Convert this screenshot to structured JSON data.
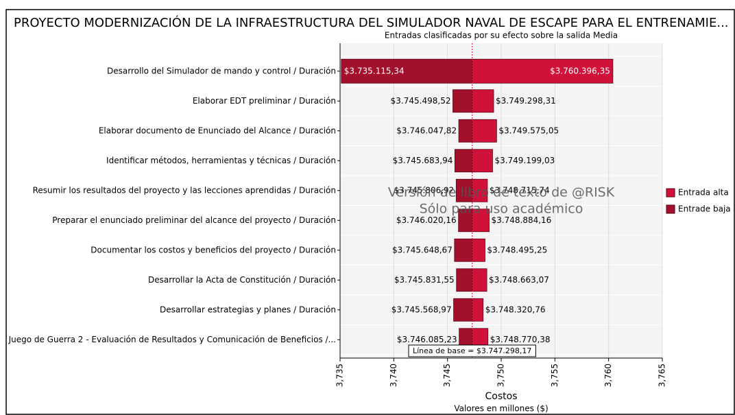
{
  "chart_data": {
    "type": "tornado",
    "title": "PROYECTO MODERNIZACIÓN DE LA INFRAESTRUCTURA DEL SIMULADOR NAVAL DE ESCAPE PARA EL ENTRENAMIE...",
    "subtitle": "Entradas clasificadas por su efecto sobre la salida Media",
    "x_label": "Costos",
    "x_sublabel": "Valores en millones ($)",
    "baseline": 3.74729817,
    "baseline_label": "Línea de base = $3.747.298,17",
    "watermark": [
      "Versión de libro de texto de @RISK",
      "Sólo para uso académico"
    ],
    "categories": [
      "Desarrollo del Simulador de mando y control / Duración",
      "Elaborar EDT preliminar / Duración",
      "Elaborar documento de Enunciado del Alcance / Duración",
      "Identificar métodos, herramientas y técnicas / Duración",
      "Resumir los resultados del proyecto y las lecciones aprendidas / Duración",
      "Preparar el enunciado preliminar del alcance del proyecto / Duración",
      "Documentar los costos y beneficios del proyecto / Duración",
      "Desarrollar la Acta de Constitución / Duración",
      "Desarrollar estrategias y planes / Duración",
      "Juego de Guerra 2 - Evaluación de Resultados y Comunicación de Beneficios /..."
    ],
    "series": [
      {
        "name": "Entrada alta",
        "color": "#d0123a",
        "values": [
          3.76039635,
          3.74929831,
          3.74957505,
          3.74919903,
          3.74871574,
          3.74888416,
          3.74849525,
          3.74866307,
          3.74832076,
          3.74877038
        ],
        "value_labels": [
          "$3.760.396,35",
          "$3.749.298,31",
          "$3.749.575,05",
          "$3.749.199,03",
          "$3.748.715,74",
          "$3.748.884,16",
          "$3.748.495,25",
          "$3.748.663,07",
          "$3.748.320,76",
          "$3.748.770,38"
        ]
      },
      {
        "name": "Entrade baja",
        "color": "#a3102c",
        "values": [
          3.73511534,
          3.74549852,
          3.74604782,
          3.74568394,
          3.74580692,
          3.74602016,
          3.74564867,
          3.74583155,
          3.74556897,
          3.74608523
        ],
        "value_labels": [
          "$3.735.115,34",
          "$3.745.498,52",
          "$3.746.047,82",
          "$3.745.683,94",
          "$3.745.806,92",
          "$3.746.020,16",
          "$3.745.648,67",
          "$3.745.831,55",
          "$3.745.568,97",
          "$3.746.085,23"
        ]
      }
    ],
    "xlim": [
      3.735,
      3.765
    ],
    "xticks": [
      {
        "value": 3.735,
        "label": "3,735"
      },
      {
        "value": 3.74,
        "label": "3,740"
      },
      {
        "value": 3.745,
        "label": "3,745"
      },
      {
        "value": 3.75,
        "label": "3,750"
      },
      {
        "value": 3.755,
        "label": "3,755"
      },
      {
        "value": 3.76,
        "label": "3,760"
      },
      {
        "value": 3.765,
        "label": "3,765"
      }
    ],
    "grid": true,
    "legend": "right"
  }
}
